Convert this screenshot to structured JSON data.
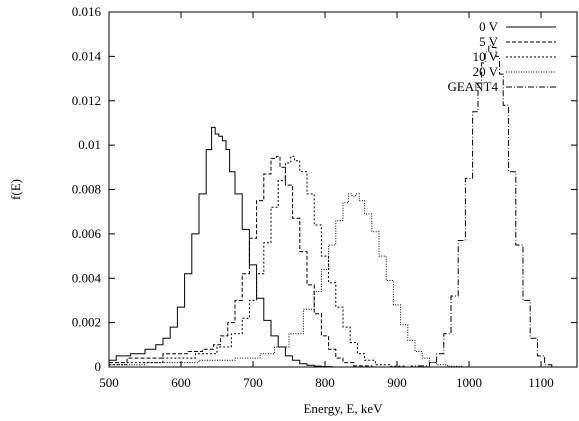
{
  "chart_data": {
    "type": "line",
    "title": "",
    "xlabel": "Energy, E, keV",
    "ylabel": "f(E)",
    "xlim": [
      500,
      1150
    ],
    "ylim": [
      0,
      0.016
    ],
    "x_ticks": [
      500,
      600,
      700,
      800,
      900,
      1000,
      1100
    ],
    "y_ticks": [
      0,
      0.002,
      0.004,
      0.006,
      0.008,
      0.01,
      0.012,
      0.014,
      0.016
    ],
    "y_tick_labels": [
      "0",
      "0.002",
      "0.004",
      "0.006",
      "0.008",
      "0.01",
      "0.012",
      "0.014",
      "0.016"
    ],
    "grid": false,
    "legend_position": "top-right",
    "series": [
      {
        "name": "0 V",
        "dash": "solid",
        "x": [
          500,
          520,
          540,
          560,
          570,
          580,
          590,
          600,
          610,
          620,
          630,
          640,
          645,
          650,
          655,
          660,
          665,
          670,
          680,
          690,
          700,
          710,
          720,
          730,
          740,
          750,
          760,
          770,
          780,
          790,
          800,
          820,
          850
        ],
        "y": [
          0.0003,
          0.0005,
          0.0006,
          0.0008,
          0.001,
          0.0013,
          0.0018,
          0.0027,
          0.0042,
          0.006,
          0.0078,
          0.0098,
          0.0108,
          0.0105,
          0.0104,
          0.0102,
          0.0098,
          0.0088,
          0.0078,
          0.0062,
          0.0046,
          0.0031,
          0.0021,
          0.0014,
          0.0009,
          0.0005,
          0.0003,
          0.00015,
          8e-05,
          4e-05,
          2e-05,
          0.0,
          0.0
        ]
      },
      {
        "name": "5 V",
        "dash": "dashed",
        "x": [
          500,
          550,
          600,
          620,
          640,
          650,
          660,
          670,
          680,
          690,
          700,
          710,
          720,
          730,
          735,
          740,
          750,
          760,
          770,
          780,
          790,
          800,
          810,
          820,
          830,
          850,
          880,
          900
        ],
        "y": [
          0.0002,
          0.0004,
          0.0006,
          0.0007,
          0.0008,
          0.001,
          0.0014,
          0.002,
          0.003,
          0.0042,
          0.0058,
          0.0075,
          0.0087,
          0.0094,
          0.0095,
          0.009,
          0.0082,
          0.0067,
          0.0052,
          0.0037,
          0.0024,
          0.0014,
          0.0008,
          0.0004,
          0.0002,
          5e-05,
          0.0,
          0.0
        ]
      },
      {
        "name": "10 V",
        "dash": "dotted",
        "x": [
          500,
          550,
          600,
          640,
          660,
          680,
          690,
          700,
          710,
          720,
          730,
          740,
          750,
          755,
          760,
          770,
          780,
          790,
          800,
          810,
          820,
          830,
          840,
          850,
          860,
          880,
          900,
          920
        ],
        "y": [
          0.0001,
          0.0002,
          0.0004,
          0.0006,
          0.0009,
          0.0015,
          0.0022,
          0.003,
          0.0042,
          0.0056,
          0.0072,
          0.0084,
          0.0092,
          0.0095,
          0.0093,
          0.0088,
          0.0078,
          0.0064,
          0.005,
          0.0038,
          0.0027,
          0.0018,
          0.0011,
          0.0006,
          0.0003,
          0.0001,
          3e-05,
          0.0
        ]
      },
      {
        "name": "20 V",
        "dash": "fine-dotted",
        "x": [
          500,
          600,
          650,
          700,
          720,
          740,
          760,
          780,
          790,
          800,
          810,
          820,
          830,
          835,
          840,
          845,
          850,
          860,
          870,
          880,
          890,
          900,
          910,
          920,
          930,
          940,
          950,
          960,
          980,
          1000
        ],
        "y": [
          0.0001,
          0.0002,
          0.0003,
          0.0004,
          0.0006,
          0.0009,
          0.0015,
          0.0026,
          0.0034,
          0.0044,
          0.0055,
          0.0066,
          0.0074,
          0.0078,
          0.0077,
          0.0078,
          0.0075,
          0.0069,
          0.0061,
          0.005,
          0.0039,
          0.0028,
          0.0019,
          0.0012,
          0.0007,
          0.0004,
          0.0002,
          0.0001,
          3e-05,
          0.0
        ]
      },
      {
        "name": "GEANT4",
        "dash": "dash-dot",
        "x": [
          900,
          940,
          950,
          960,
          970,
          980,
          990,
          1000,
          1010,
          1015,
          1020,
          1025,
          1030,
          1035,
          1040,
          1045,
          1050,
          1060,
          1070,
          1080,
          1090,
          1100,
          1110,
          1120
        ],
        "y": [
          0.0,
          5e-05,
          0.0002,
          0.0006,
          0.0015,
          0.0032,
          0.0057,
          0.0085,
          0.0115,
          0.0128,
          0.0137,
          0.0142,
          0.0145,
          0.0144,
          0.014,
          0.0132,
          0.0118,
          0.0088,
          0.0055,
          0.003,
          0.0013,
          0.0005,
          0.0001,
          0.0
        ]
      }
    ]
  }
}
